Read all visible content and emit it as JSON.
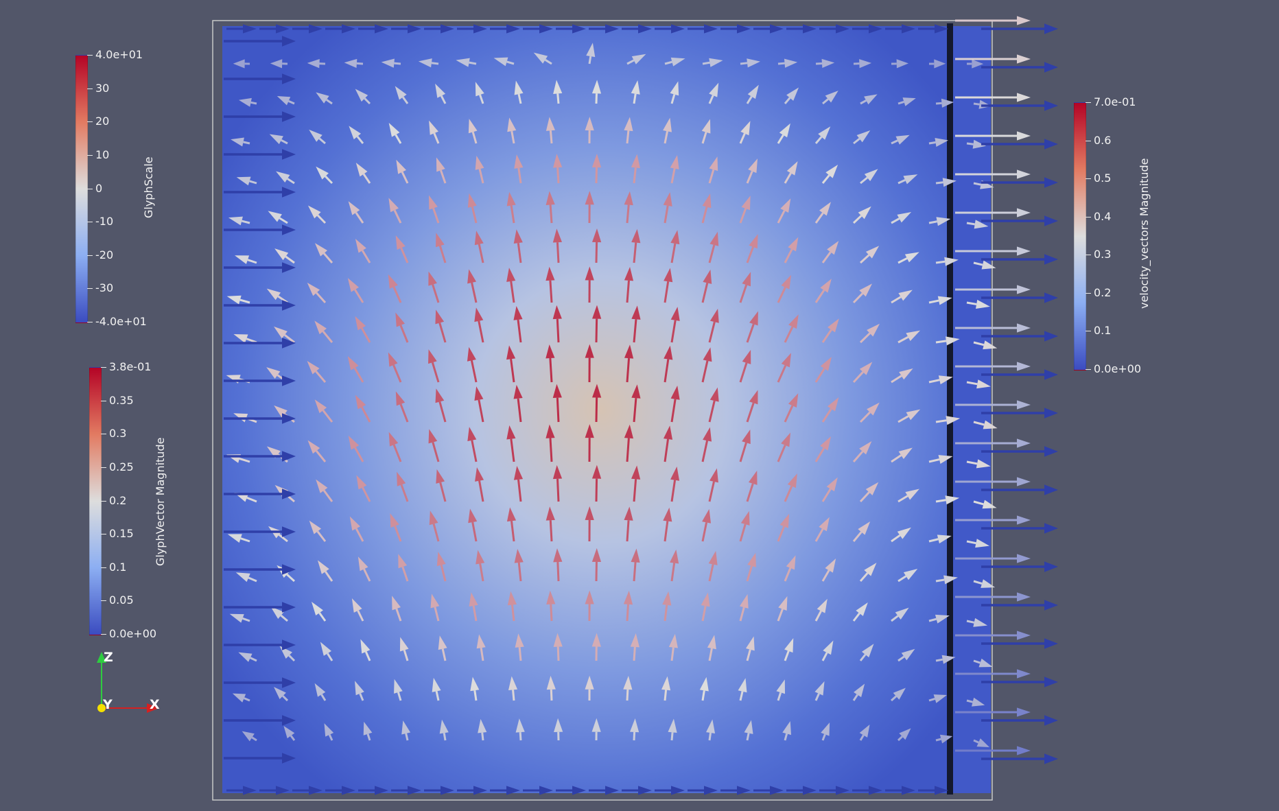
{
  "view": {
    "background": "#525669",
    "field_colors": {
      "low": "#3b4cc0",
      "mid": "#dddddd",
      "high": "#b40426"
    }
  },
  "legends": {
    "glyph_scale": {
      "title": "GlyphScale",
      "ticks": [
        "4.0e+01",
        "30",
        "20",
        "10",
        "0",
        "-10",
        "-20",
        "-30",
        "-4.0e+01"
      ]
    },
    "glyph_vector": {
      "title": "GlyphVector Magnitude",
      "ticks": [
        "3.8e-01",
        "0.35",
        "0.3",
        "0.25",
        "0.2",
        "0.15",
        "0.1",
        "0.05",
        "0.0e+00"
      ]
    },
    "velocity": {
      "title": "velocity_vectors Magnitude",
      "ticks": [
        "7.0e-01",
        "0.6",
        "0.5",
        "0.4",
        "0.3",
        "0.2",
        "0.1",
        "0.0e+00"
      ]
    }
  },
  "axes": {
    "z": "Z",
    "y": "Y",
    "x": "X"
  }
}
